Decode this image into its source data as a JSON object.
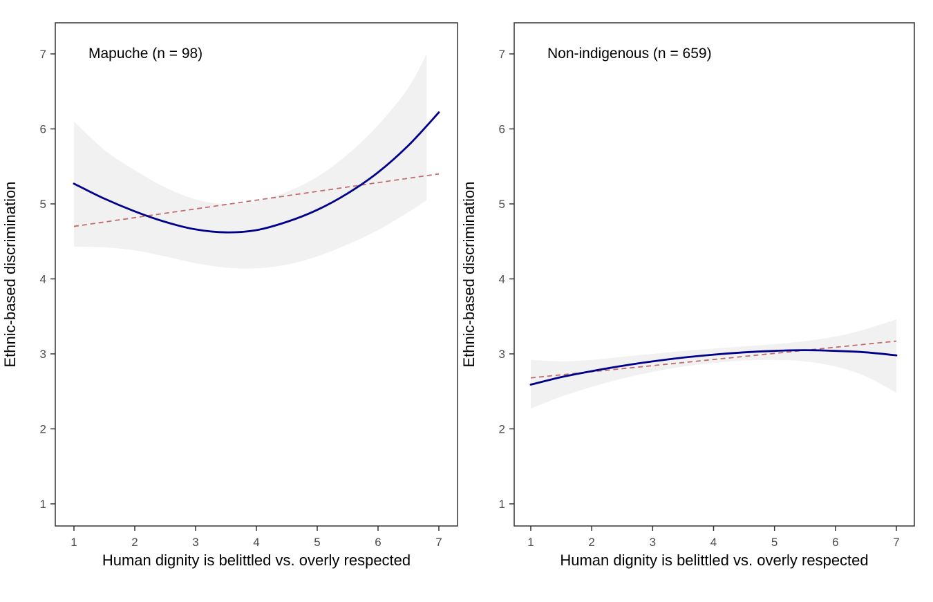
{
  "figure": {
    "background": "#FFFFFF",
    "styles": {
      "tick_label_color": "#4D4D4D",
      "axis_line_color": "#333333",
      "text_color": "#000000",
      "smooth_line_color": "#00008B",
      "linear_line_color": "#C06C6C",
      "band_color": "#F1F1F1"
    }
  },
  "chart_data": [
    {
      "type": "line",
      "panel": "left",
      "title": "Mapuche (n = 98)",
      "xlabel": "Human dignity is belittled vs. overly respected",
      "ylabel": "Ethnic-based discrimination",
      "xlim": [
        1,
        7
      ],
      "ylim": [
        1,
        7
      ],
      "grid": "off",
      "legend": "none",
      "x_ticks": [
        1,
        2,
        3,
        4,
        5,
        6,
        7
      ],
      "y_ticks": [
        1,
        2,
        3,
        4,
        5,
        6,
        7
      ],
      "series": [
        {
          "name": "smooth-quadratic-fit",
          "style": "solid",
          "color": "#00008B",
          "width": 2.8,
          "x": [
            1,
            1.5,
            2,
            2.5,
            3,
            3.5,
            4,
            4.5,
            5,
            5.5,
            6,
            6.5,
            7
          ],
          "y": [
            5.27,
            5.07,
            4.9,
            4.76,
            4.66,
            4.62,
            4.65,
            4.76,
            4.92,
            5.14,
            5.42,
            5.78,
            6.22
          ]
        },
        {
          "name": "linear-fit",
          "style": "dashed",
          "color": "#C06C6C",
          "width": 1.8,
          "x": [
            1,
            7
          ],
          "y": [
            4.7,
            5.4
          ]
        }
      ],
      "confidence_band": {
        "color": "#F1F1F1",
        "x": [
          1,
          1.5,
          2,
          2.5,
          3,
          3.5,
          4,
          4.5,
          5,
          5.5,
          6,
          6.5,
          6.8
        ],
        "upper": [
          6.1,
          5.72,
          5.45,
          5.22,
          5.06,
          5.0,
          5.04,
          5.16,
          5.36,
          5.66,
          6.05,
          6.55,
          7.0
        ],
        "lower": [
          4.43,
          4.42,
          4.38,
          4.3,
          4.21,
          4.15,
          4.14,
          4.19,
          4.3,
          4.46,
          4.65,
          4.89,
          5.05
        ]
      }
    },
    {
      "type": "line",
      "panel": "right",
      "title": "Non-indigenous (n = 659)",
      "xlabel": "Human dignity is belittled vs. overly respected",
      "ylabel": "Ethnic-based discrimination",
      "xlim": [
        1,
        7
      ],
      "ylim": [
        1,
        7
      ],
      "grid": "off",
      "legend": "none",
      "x_ticks": [
        1,
        2,
        3,
        4,
        5,
        6,
        7
      ],
      "y_ticks": [
        1,
        2,
        3,
        4,
        5,
        6,
        7
      ],
      "series": [
        {
          "name": "smooth-quadratic-fit",
          "style": "solid",
          "color": "#00008B",
          "width": 2.8,
          "x": [
            1,
            1.5,
            2,
            2.5,
            3,
            3.5,
            4,
            4.5,
            5,
            5.5,
            6,
            6.5,
            7
          ],
          "y": [
            2.59,
            2.69,
            2.77,
            2.84,
            2.9,
            2.95,
            2.99,
            3.02,
            3.04,
            3.05,
            3.04,
            3.02,
            2.98
          ]
        },
        {
          "name": "linear-fit",
          "style": "dashed",
          "color": "#C06C6C",
          "width": 1.8,
          "x": [
            1,
            7
          ],
          "y": [
            2.68,
            3.17
          ]
        }
      ],
      "confidence_band": {
        "color": "#F1F1F1",
        "x": [
          1,
          1.5,
          2,
          2.5,
          3,
          3.5,
          4,
          4.5,
          5,
          5.5,
          6,
          6.5,
          7
        ],
        "upper": [
          2.92,
          2.9,
          2.92,
          2.96,
          3.0,
          3.04,
          3.07,
          3.1,
          3.13,
          3.17,
          3.23,
          3.33,
          3.46
        ],
        "lower": [
          2.27,
          2.43,
          2.56,
          2.67,
          2.76,
          2.83,
          2.88,
          2.91,
          2.92,
          2.9,
          2.83,
          2.7,
          2.48
        ]
      }
    }
  ]
}
